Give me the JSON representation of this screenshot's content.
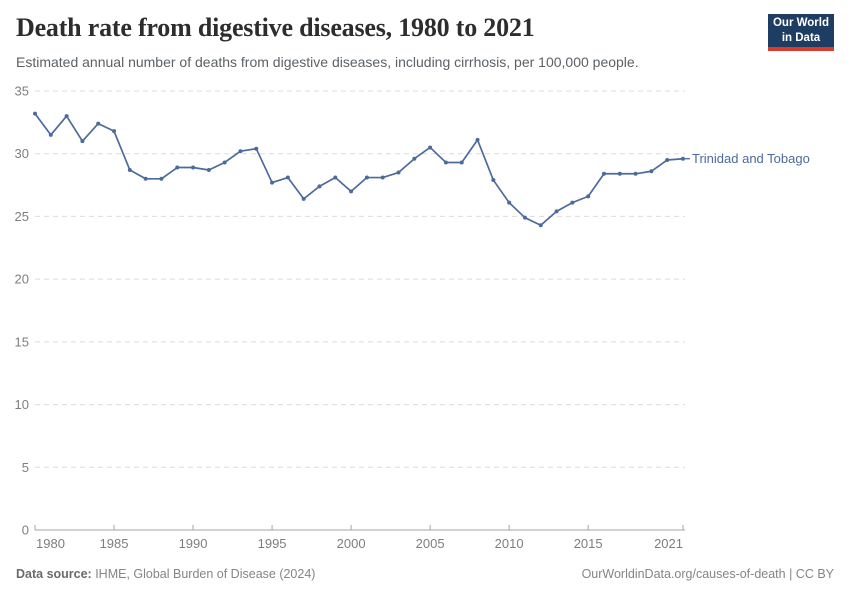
{
  "header": {
    "title": "Death rate from digestive diseases, 1980 to 2021",
    "subtitle": "Estimated annual number of deaths from digestive diseases, including cirrhosis, per 100,000 people.",
    "logo": {
      "line1": "Our World",
      "line2": "in Data"
    }
  },
  "chart_data": {
    "type": "line",
    "title": "Death rate from digestive diseases, 1980 to 2021",
    "xlabel": "",
    "ylabel": "",
    "xlim": [
      1980,
      2021
    ],
    "ylim": [
      0,
      35
    ],
    "x_ticks": [
      1980,
      1985,
      1990,
      1995,
      2000,
      2005,
      2010,
      2015,
      2021
    ],
    "y_ticks": [
      0,
      5,
      10,
      15,
      20,
      25,
      30,
      35
    ],
    "grid": "horizontal-dashed",
    "legend_position": "line-end-label",
    "series": [
      {
        "name": "Trinidad and Tobago",
        "color": "#4C6A9C",
        "years": [
          1980,
          1981,
          1982,
          1983,
          1984,
          1985,
          1986,
          1987,
          1988,
          1989,
          1990,
          1991,
          1992,
          1993,
          1994,
          1995,
          1996,
          1997,
          1998,
          1999,
          2000,
          2001,
          2002,
          2003,
          2004,
          2005,
          2006,
          2007,
          2008,
          2009,
          2010,
          2011,
          2012,
          2013,
          2014,
          2015,
          2016,
          2017,
          2018,
          2019,
          2020,
          2021
        ],
        "values": [
          33.2,
          31.5,
          33.0,
          31.0,
          32.4,
          31.8,
          28.7,
          28.0,
          28.0,
          28.9,
          28.9,
          28.7,
          29.3,
          30.2,
          30.4,
          27.7,
          28.1,
          26.4,
          27.4,
          28.1,
          27.0,
          28.1,
          28.1,
          28.5,
          29.6,
          30.5,
          29.3,
          29.3,
          31.1,
          27.9,
          26.1,
          24.9,
          24.3,
          25.4,
          26.1,
          26.6,
          28.4,
          28.4,
          28.4,
          28.6,
          29.5,
          29.6
        ]
      }
    ]
  },
  "footer": {
    "source_label": "Data source:",
    "source_text": " IHME, Global Burden of Disease (2024)",
    "license": "OurWorldinData.org/causes-of-death | CC BY"
  },
  "colors": {
    "line": "#4C6A9C",
    "grid": "#DBDBDB",
    "axis": "#A5A5A5",
    "tick_label": "#7E7E7E",
    "title": "#2D2D2D",
    "subtitle": "#5B6166",
    "footer": "#858585",
    "logo_bg": "#1D3D63",
    "logo_accent": "#DC3A2D"
  }
}
